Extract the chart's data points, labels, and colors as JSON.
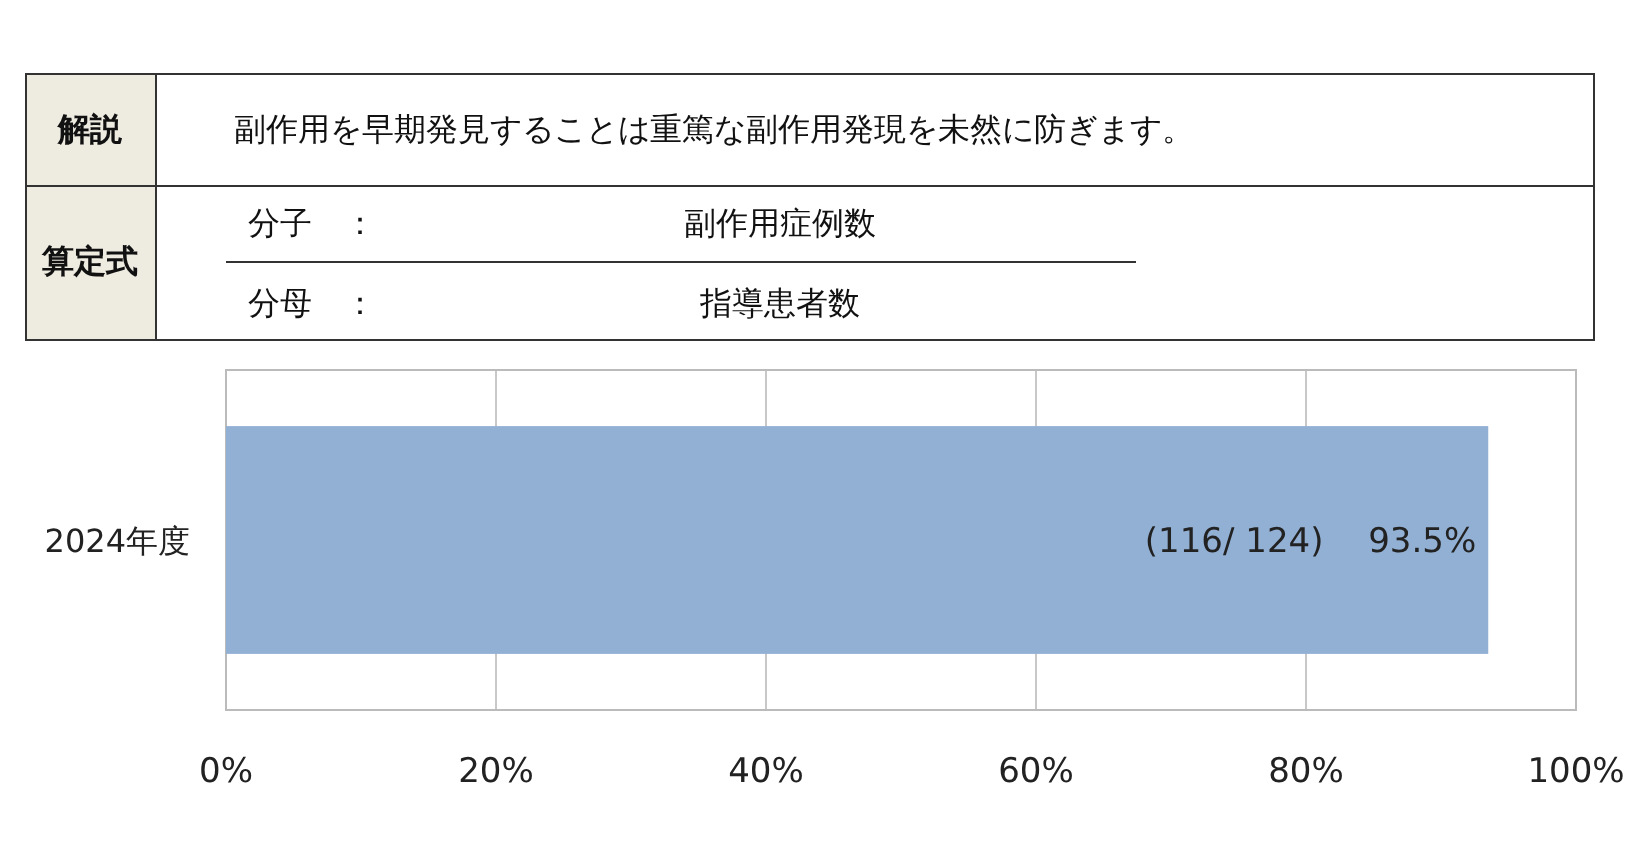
{
  "chart_data": {
    "type": "bar",
    "orientation": "horizontal",
    "categories": [
      "2024年度"
    ],
    "values": [
      93.5
    ],
    "color": "#92b0d4",
    "value_labels": [
      "(116/ 124)　 93.5%"
    ],
    "xlim": [
      0,
      100
    ],
    "xticks": [
      {
        "value": 0,
        "label": "0%"
      },
      {
        "value": 20,
        "label": "20%"
      },
      {
        "value": 40,
        "label": "40%"
      },
      {
        "value": 60,
        "label": "60%"
      },
      {
        "value": 80,
        "label": "80%"
      },
      {
        "value": 100,
        "label": "100%"
      }
    ],
    "grid": "x",
    "annotations": [
      "解説",
      "副作用を早期発見することは重篤な副作用発現を未然に防ぎます。",
      "算定式",
      "分子　：",
      "副作用症例数",
      "分母　：",
      "指導患者数"
    ]
  }
}
